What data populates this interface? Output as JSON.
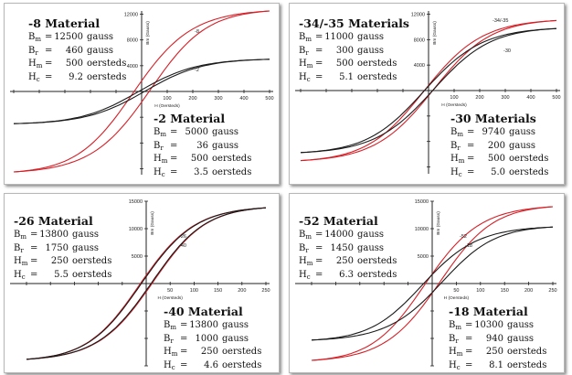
{
  "colors": {
    "red": "#d61f26",
    "black": "#1a1a1a",
    "axis": "#222222"
  },
  "chart_data": [
    {
      "type": "line",
      "x_axis": {
        "label": "H (Oersteds)",
        "ticks": [
          100,
          200,
          300,
          400,
          500
        ],
        "range": [
          -500,
          500
        ]
      },
      "y_axis": {
        "label": "Bm (Gauss)",
        "ticks": [
          4000,
          8000,
          12000
        ],
        "range": [
          -12500,
          12500
        ]
      },
      "series": [
        {
          "name": "-8",
          "color": "red",
          "Bm": 12500,
          "Br": 460,
          "Hm": 500,
          "Hc": 9.2
        },
        {
          "name": "-2",
          "color": "black",
          "Bm": 5000,
          "Br": 36,
          "Hm": 500,
          "Hc": 3.5
        }
      ],
      "materials": [
        {
          "title": "-8 Material",
          "props": [
            {
              "sym": "B",
              "sub": "m",
              "val": "12500",
              "unit": "gauss"
            },
            {
              "sym": "B",
              "sub": "r",
              "val": "460",
              "unit": "gauss"
            },
            {
              "sym": "H",
              "sub": "m",
              "val": "500",
              "unit": "oersteds"
            },
            {
              "sym": "H",
              "sub": "c",
              "val": "9.2",
              "unit": "oersteds"
            }
          ]
        },
        {
          "title": "-2 Material",
          "props": [
            {
              "sym": "B",
              "sub": "m",
              "val": "5000",
              "unit": "gauss"
            },
            {
              "sym": "B",
              "sub": "r",
              "val": "36",
              "unit": "gauss"
            },
            {
              "sym": "H",
              "sub": "m",
              "val": "500",
              "unit": "oersteds"
            },
            {
              "sym": "H",
              "sub": "c",
              "val": "3.5",
              "unit": "oersteds"
            }
          ]
        }
      ]
    },
    {
      "type": "line",
      "x_axis": {
        "label": "H (Oersteds)",
        "ticks": [
          100,
          200,
          300,
          400,
          500
        ],
        "range": [
          -500,
          500
        ]
      },
      "y_axis": {
        "label": "Bm (Gauss)",
        "ticks": [
          4000,
          8000,
          12000
        ],
        "range": [
          -12500,
          12500
        ]
      },
      "series": [
        {
          "name": "-34/-35",
          "color": "red",
          "Bm": 11000,
          "Br": 300,
          "Hm": 500,
          "Hc": 5.1
        },
        {
          "name": "-30",
          "color": "black",
          "Bm": 9740,
          "Br": 200,
          "Hm": 500,
          "Hc": 5.0
        }
      ],
      "materials": [
        {
          "title": "-34/-35 Materials",
          "props": [
            {
              "sym": "B",
              "sub": "m",
              "val": "11000",
              "unit": "gauss"
            },
            {
              "sym": "B",
              "sub": "r",
              "val": "300",
              "unit": "gauss"
            },
            {
              "sym": "H",
              "sub": "m",
              "val": "500",
              "unit": "oersteds"
            },
            {
              "sym": "H",
              "sub": "c",
              "val": "5.1",
              "unit": "oersteds"
            }
          ]
        },
        {
          "title": "-30 Materials",
          "props": [
            {
              "sym": "B",
              "sub": "m",
              "val": "9740",
              "unit": "gauss"
            },
            {
              "sym": "B",
              "sub": "r",
              "val": "200",
              "unit": "gauss"
            },
            {
              "sym": "H",
              "sub": "m",
              "val": "500",
              "unit": "oersteds"
            },
            {
              "sym": "H",
              "sub": "c",
              "val": "5.0",
              "unit": "oersteds"
            }
          ]
        }
      ]
    },
    {
      "type": "line",
      "x_axis": {
        "label": "H (Oersteds)",
        "ticks": [
          50,
          100,
          150,
          200,
          250
        ],
        "range": [
          -250,
          250
        ]
      },
      "y_axis": {
        "label": "Bm (Gauss)",
        "ticks": [
          5000,
          10000,
          15000
        ],
        "range": [
          -14000,
          15000
        ]
      },
      "series": [
        {
          "name": "-26",
          "color": "red",
          "Bm": 13800,
          "Br": 1750,
          "Hm": 250,
          "Hc": 5.5
        },
        {
          "name": "-40",
          "color": "black",
          "Bm": 13800,
          "Br": 1000,
          "Hm": 250,
          "Hc": 4.6
        }
      ],
      "materials": [
        {
          "title": "-26 Material",
          "props": [
            {
              "sym": "B",
              "sub": "m",
              "val": "13800",
              "unit": "gauss"
            },
            {
              "sym": "B",
              "sub": "r",
              "val": "1750",
              "unit": "gauss"
            },
            {
              "sym": "H",
              "sub": "m",
              "val": "250",
              "unit": "oersteds"
            },
            {
              "sym": "H",
              "sub": "c",
              "val": "5.5",
              "unit": "oersteds"
            }
          ]
        },
        {
          "title": "-40 Material",
          "props": [
            {
              "sym": "B",
              "sub": "m",
              "val": "13800",
              "unit": "gauss"
            },
            {
              "sym": "B",
              "sub": "r",
              "val": "1000",
              "unit": "gauss"
            },
            {
              "sym": "H",
              "sub": "m",
              "val": "250",
              "unit": "oersteds"
            },
            {
              "sym": "H",
              "sub": "c",
              "val": "4.6",
              "unit": "oersteds"
            }
          ]
        }
      ]
    },
    {
      "type": "line",
      "x_axis": {
        "label": "H (Oersteds)",
        "ticks": [
          50,
          100,
          150,
          200,
          250
        ],
        "range": [
          -250,
          250
        ]
      },
      "y_axis": {
        "label": "Bm (Gauss)",
        "ticks": [
          5000,
          10000,
          15000
        ],
        "range": [
          -14000,
          15000
        ]
      },
      "series": [
        {
          "name": "-52",
          "color": "red",
          "Bm": 14000,
          "Br": 1450,
          "Hm": 250,
          "Hc": 6.3
        },
        {
          "name": "-18",
          "color": "black",
          "Bm": 10300,
          "Br": 940,
          "Hm": 250,
          "Hc": 8.1
        }
      ],
      "materials": [
        {
          "title": "-52 Material",
          "props": [
            {
              "sym": "B",
              "sub": "m",
              "val": "14000",
              "unit": "gauss"
            },
            {
              "sym": "B",
              "sub": "r",
              "val": "1450",
              "unit": "gauss"
            },
            {
              "sym": "H",
              "sub": "m",
              "val": "250",
              "unit": "oersteds"
            },
            {
              "sym": "H",
              "sub": "c",
              "val": "6.3",
              "unit": "oersteds"
            }
          ]
        },
        {
          "title": "-18 Material",
          "props": [
            {
              "sym": "B",
              "sub": "m",
              "val": "10300",
              "unit": "gauss"
            },
            {
              "sym": "B",
              "sub": "r",
              "val": "940",
              "unit": "gauss"
            },
            {
              "sym": "H",
              "sub": "m",
              "val": "250",
              "unit": "oersteds"
            },
            {
              "sym": "H",
              "sub": "c",
              "val": "8.1",
              "unit": "oersteds"
            }
          ]
        }
      ]
    }
  ]
}
